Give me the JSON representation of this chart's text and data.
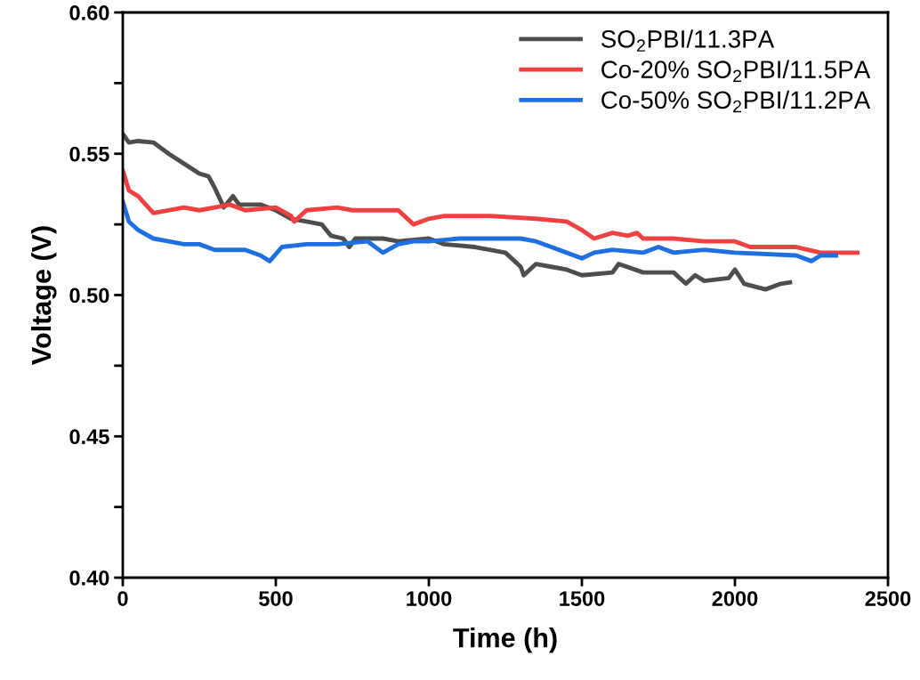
{
  "chart_data": {
    "type": "line",
    "xlabel": "Time (h)",
    "ylabel": "Voltage (V)",
    "xlim": [
      0,
      2500
    ],
    "xticks": [
      0,
      500,
      1000,
      1500,
      2000,
      2500
    ],
    "ylim": [
      0.4,
      0.6
    ],
    "yticks": [
      {
        "value": 0.4,
        "label": "0.40"
      },
      {
        "value": 0.425,
        "label": null
      },
      {
        "value": 0.45,
        "label": "0.45"
      },
      {
        "value": 0.475,
        "label": null
      },
      {
        "value": 0.5,
        "label": "0.50"
      },
      {
        "value": 0.525,
        "label": null
      },
      {
        "value": 0.55,
        "label": "0.55"
      },
      {
        "value": 0.575,
        "label": null
      },
      {
        "value": 0.6,
        "label": "0.60"
      }
    ],
    "legend": "top right",
    "grid": false,
    "marker": "none",
    "line_style": "solid",
    "series": [
      {
        "name": "SO$_{2}$PBI/11.3PA",
        "color": "#4d4d4d",
        "x": [
          0,
          20,
          50,
          100,
          150,
          200,
          250,
          280,
          300,
          330,
          360,
          380,
          450,
          500,
          550,
          600,
          650,
          680,
          720,
          740,
          760,
          850,
          900,
          1000,
          1050,
          1150,
          1250,
          1300,
          1310,
          1350,
          1400,
          1450,
          1500,
          1600,
          1620,
          1700,
          1800,
          1840,
          1870,
          1900,
          1980,
          2000,
          2030,
          2100,
          2150,
          2180
        ],
        "values": [
          0.557,
          0.554,
          0.5545,
          0.554,
          0.55,
          0.5465,
          0.543,
          0.542,
          0.538,
          0.531,
          0.535,
          0.532,
          0.532,
          0.53,
          0.527,
          0.526,
          0.525,
          0.521,
          0.52,
          0.517,
          0.52,
          0.52,
          0.519,
          0.52,
          0.518,
          0.517,
          0.515,
          0.51,
          0.507,
          0.511,
          0.51,
          0.509,
          0.507,
          0.508,
          0.511,
          0.508,
          0.508,
          0.504,
          0.507,
          0.505,
          0.506,
          0.509,
          0.504,
          0.502,
          0.504,
          0.5045
        ]
      },
      {
        "name": "Co-20% SO$_{2}$PBI/11.5PA",
        "color": "#f04040",
        "x": [
          0,
          20,
          50,
          100,
          200,
          250,
          300,
          350,
          400,
          500,
          550,
          560,
          600,
          700,
          750,
          900,
          950,
          1000,
          1050,
          1200,
          1350,
          1450,
          1500,
          1540,
          1600,
          1650,
          1680,
          1700,
          1800,
          1900,
          2000,
          2050,
          2200,
          2280,
          2400
        ],
        "values": [
          0.544,
          0.537,
          0.535,
          0.529,
          0.531,
          0.53,
          0.531,
          0.532,
          0.53,
          0.531,
          0.528,
          0.526,
          0.53,
          0.531,
          0.53,
          0.53,
          0.525,
          0.527,
          0.528,
          0.528,
          0.527,
          0.526,
          0.523,
          0.52,
          0.522,
          0.521,
          0.522,
          0.52,
          0.52,
          0.519,
          0.519,
          0.517,
          0.517,
          0.515,
          0.515
        ]
      },
      {
        "name": "Co-50% SO$_{2}$PBI/11.2PA",
        "color": "#1f6fe0",
        "x": [
          0,
          20,
          50,
          100,
          150,
          200,
          250,
          300,
          400,
          450,
          480,
          520,
          600,
          700,
          800,
          850,
          900,
          950,
          1000,
          1100,
          1200,
          1300,
          1350,
          1400,
          1450,
          1500,
          1540,
          1600,
          1700,
          1750,
          1800,
          1900,
          2000,
          2200,
          2250,
          2280,
          2330
        ],
        "values": [
          0.533,
          0.526,
          0.523,
          0.52,
          0.519,
          0.518,
          0.518,
          0.516,
          0.516,
          0.514,
          0.512,
          0.517,
          0.518,
          0.518,
          0.519,
          0.515,
          0.518,
          0.519,
          0.519,
          0.52,
          0.52,
          0.52,
          0.519,
          0.517,
          0.515,
          0.513,
          0.515,
          0.516,
          0.515,
          0.517,
          0.515,
          0.516,
          0.515,
          0.514,
          0.512,
          0.514,
          0.514
        ]
      }
    ]
  }
}
